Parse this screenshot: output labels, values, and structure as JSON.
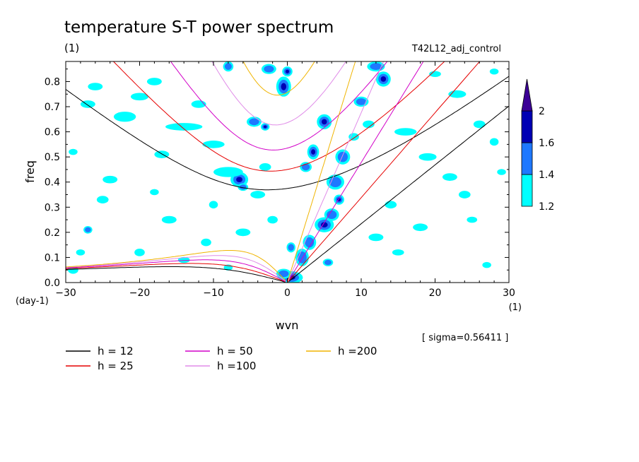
{
  "title": "temperature S-T power spectrum",
  "subtitle": "(1)",
  "run_label": "T42L12_adj_control",
  "sigma_text": "[ sigma=0.56411 ]",
  "chart_data": {
    "type": "heatmap",
    "title": "temperature S-T power spectrum",
    "subtitle": "(1)",
    "xlabel": "wvn",
    "xunit": "(1)",
    "ylabel": "freq",
    "yunit": "(day-1)",
    "xlim": [
      -30,
      30
    ],
    "ylim": [
      0,
      0.88
    ],
    "x_ticks": [
      -30,
      -20,
      -10,
      0,
      10,
      20,
      30
    ],
    "x_tick_labels": [
      "−30",
      "−20",
      "−10",
      "0",
      "10",
      "20",
      "30"
    ],
    "y_ticks": [
      0,
      0.1,
      0.2,
      0.3,
      0.4,
      0.5,
      0.6,
      0.7,
      0.8
    ],
    "y_tick_labels": [
      "0.0",
      "0.1",
      "0.2",
      "0.3",
      "0.4",
      "0.5",
      "0.6",
      "0.7",
      "0.8"
    ],
    "colorbar": {
      "levels": [
        1.2,
        1.4,
        1.6,
        2
      ],
      "labels": [
        "1.2",
        "1.4",
        "1.6",
        "2"
      ],
      "colors": [
        "#00ffff",
        "#1e78ff",
        "#0000b4",
        "#3c0096"
      ]
    },
    "blobs": [
      {
        "x": 0.5,
        "y": 0.02,
        "rx": 1.6,
        "ry": 0.025,
        "level": 3
      },
      {
        "x": -0.5,
        "y": 0.035,
        "rx": 1.0,
        "ry": 0.02,
        "level": 2
      },
      {
        "x": 2.0,
        "y": 0.1,
        "rx": 0.9,
        "ry": 0.035,
        "level": 2
      },
      {
        "x": 3.0,
        "y": 0.16,
        "rx": 0.9,
        "ry": 0.03,
        "level": 2
      },
      {
        "x": 5.0,
        "y": 0.23,
        "rx": 1.3,
        "ry": 0.03,
        "level": 3
      },
      {
        "x": 6.0,
        "y": 0.27,
        "rx": 1.0,
        "ry": 0.025,
        "level": 2
      },
      {
        "x": 6.5,
        "y": 0.4,
        "rx": 1.2,
        "ry": 0.03,
        "level": 2
      },
      {
        "x": 7.5,
        "y": 0.5,
        "rx": 1.0,
        "ry": 0.03,
        "level": 2
      },
      {
        "x": 5.0,
        "y": 0.64,
        "rx": 1.0,
        "ry": 0.03,
        "level": 3
      },
      {
        "x": 3.5,
        "y": 0.52,
        "rx": 0.8,
        "ry": 0.03,
        "level": 3
      },
      {
        "x": 2.5,
        "y": 0.46,
        "rx": 0.8,
        "ry": 0.02,
        "level": 2
      },
      {
        "x": 10.0,
        "y": 0.72,
        "rx": 1.0,
        "ry": 0.02,
        "level": 2
      },
      {
        "x": 13.0,
        "y": 0.81,
        "rx": 1.0,
        "ry": 0.03,
        "level": 3
      },
      {
        "x": 12.0,
        "y": 0.86,
        "rx": 1.2,
        "ry": 0.02,
        "level": 2
      },
      {
        "x": 11.0,
        "y": 0.63,
        "rx": 0.8,
        "ry": 0.015,
        "level": 1
      },
      {
        "x": -0.5,
        "y": 0.78,
        "rx": 1.0,
        "ry": 0.04,
        "level": 3
      },
      {
        "x": -2.5,
        "y": 0.85,
        "rx": 1.0,
        "ry": 0.02,
        "level": 2
      },
      {
        "x": 0.0,
        "y": 0.84,
        "rx": 0.7,
        "ry": 0.02,
        "level": 3
      },
      {
        "x": -8.0,
        "y": 0.86,
        "rx": 0.7,
        "ry": 0.02,
        "level": 2
      },
      {
        "x": -4.5,
        "y": 0.64,
        "rx": 1.0,
        "ry": 0.02,
        "level": 2
      },
      {
        "x": -3.0,
        "y": 0.62,
        "rx": 0.6,
        "ry": 0.015,
        "level": 3
      },
      {
        "x": -6.5,
        "y": 0.41,
        "rx": 1.2,
        "ry": 0.03,
        "level": 3
      },
      {
        "x": -6.0,
        "y": 0.38,
        "rx": 0.7,
        "ry": 0.015,
        "level": 2
      },
      {
        "x": 0.5,
        "y": 0.14,
        "rx": 0.6,
        "ry": 0.02,
        "level": 2
      },
      {
        "x": 5.5,
        "y": 0.08,
        "rx": 0.7,
        "ry": 0.015,
        "level": 2
      },
      {
        "x": 7.0,
        "y": 0.33,
        "rx": 0.7,
        "ry": 0.02,
        "level": 3
      },
      {
        "x": -29.0,
        "y": 0.05,
        "rx": 0.7,
        "ry": 0.015,
        "level": 1
      },
      {
        "x": -27.0,
        "y": 0.71,
        "rx": 1.0,
        "ry": 0.015,
        "level": 1
      },
      {
        "x": -26.0,
        "y": 0.78,
        "rx": 1.0,
        "ry": 0.015,
        "level": 1
      },
      {
        "x": -22.0,
        "y": 0.66,
        "rx": 1.5,
        "ry": 0.02,
        "level": 1
      },
      {
        "x": -20.0,
        "y": 0.74,
        "rx": 1.2,
        "ry": 0.015,
        "level": 1
      },
      {
        "x": -17.0,
        "y": 0.51,
        "rx": 1.0,
        "ry": 0.015,
        "level": 1
      },
      {
        "x": -24.0,
        "y": 0.41,
        "rx": 1.0,
        "ry": 0.015,
        "level": 1
      },
      {
        "x": -25.0,
        "y": 0.33,
        "rx": 0.8,
        "ry": 0.015,
        "level": 1
      },
      {
        "x": -14.0,
        "y": 0.62,
        "rx": 2.5,
        "ry": 0.015,
        "level": 1
      },
      {
        "x": -18.0,
        "y": 0.8,
        "rx": 1.0,
        "ry": 0.015,
        "level": 1
      },
      {
        "x": -10.0,
        "y": 0.55,
        "rx": 1.5,
        "ry": 0.015,
        "level": 1
      },
      {
        "x": -12.0,
        "y": 0.71,
        "rx": 1.0,
        "ry": 0.015,
        "level": 1
      },
      {
        "x": -8.0,
        "y": 0.44,
        "rx": 2.0,
        "ry": 0.02,
        "level": 1
      },
      {
        "x": -4.0,
        "y": 0.35,
        "rx": 1.0,
        "ry": 0.015,
        "level": 1
      },
      {
        "x": -3.0,
        "y": 0.46,
        "rx": 0.8,
        "ry": 0.015,
        "level": 1
      },
      {
        "x": -16.0,
        "y": 0.25,
        "rx": 1.0,
        "ry": 0.015,
        "level": 1
      },
      {
        "x": -10.0,
        "y": 0.31,
        "rx": 0.6,
        "ry": 0.015,
        "level": 1
      },
      {
        "x": -6.0,
        "y": 0.2,
        "rx": 1.0,
        "ry": 0.015,
        "level": 1
      },
      {
        "x": -11.0,
        "y": 0.16,
        "rx": 0.7,
        "ry": 0.015,
        "level": 1
      },
      {
        "x": -20.0,
        "y": 0.12,
        "rx": 0.7,
        "ry": 0.015,
        "level": 1
      },
      {
        "x": -27.0,
        "y": 0.21,
        "rx": 0.6,
        "ry": 0.015,
        "level": 2
      },
      {
        "x": -14.0,
        "y": 0.09,
        "rx": 0.8,
        "ry": 0.012,
        "level": 1
      },
      {
        "x": -2.0,
        "y": 0.25,
        "rx": 0.7,
        "ry": 0.015,
        "level": 1
      },
      {
        "x": 16.0,
        "y": 0.6,
        "rx": 1.5,
        "ry": 0.015,
        "level": 1
      },
      {
        "x": 19.0,
        "y": 0.5,
        "rx": 1.2,
        "ry": 0.015,
        "level": 1
      },
      {
        "x": 22.0,
        "y": 0.42,
        "rx": 1.0,
        "ry": 0.015,
        "level": 1
      },
      {
        "x": 24.0,
        "y": 0.35,
        "rx": 0.8,
        "ry": 0.015,
        "level": 1
      },
      {
        "x": 23.0,
        "y": 0.75,
        "rx": 1.2,
        "ry": 0.015,
        "level": 1
      },
      {
        "x": 26.0,
        "y": 0.63,
        "rx": 0.8,
        "ry": 0.015,
        "level": 1
      },
      {
        "x": 28.0,
        "y": 0.56,
        "rx": 0.6,
        "ry": 0.015,
        "level": 1
      },
      {
        "x": 29.0,
        "y": 0.44,
        "rx": 0.6,
        "ry": 0.012,
        "level": 1
      },
      {
        "x": 18.0,
        "y": 0.22,
        "rx": 1.0,
        "ry": 0.015,
        "level": 1
      },
      {
        "x": 25.0,
        "y": 0.25,
        "rx": 0.7,
        "ry": 0.012,
        "level": 1
      },
      {
        "x": 27.0,
        "y": 0.07,
        "rx": 0.6,
        "ry": 0.012,
        "level": 1
      },
      {
        "x": 12.0,
        "y": 0.18,
        "rx": 1.0,
        "ry": 0.015,
        "level": 1
      },
      {
        "x": 14.0,
        "y": 0.31,
        "rx": 0.8,
        "ry": 0.015,
        "level": 1
      },
      {
        "x": 15.0,
        "y": 0.12,
        "rx": 0.8,
        "ry": 0.012,
        "level": 1
      },
      {
        "x": 20.0,
        "y": 0.83,
        "rx": 0.8,
        "ry": 0.012,
        "level": 1
      },
      {
        "x": 28.0,
        "y": 0.84,
        "rx": 0.6,
        "ry": 0.012,
        "level": 1
      },
      {
        "x": 9.0,
        "y": 0.58,
        "rx": 0.7,
        "ry": 0.015,
        "level": 1
      },
      {
        "x": -29.0,
        "y": 0.52,
        "rx": 0.6,
        "ry": 0.012,
        "level": 1
      },
      {
        "x": -28.0,
        "y": 0.12,
        "rx": 0.6,
        "ry": 0.012,
        "level": 1
      },
      {
        "x": -8.0,
        "y": 0.06,
        "rx": 0.6,
        "ry": 0.012,
        "level": 1
      },
      {
        "x": -18.0,
        "y": 0.36,
        "rx": 0.6,
        "ry": 0.012,
        "level": 1
      }
    ],
    "dispersion_curves": [
      {
        "label": "h = 12",
        "h": 12,
        "color": "#000000"
      },
      {
        "label": "h = 25",
        "h": 25,
        "color": "#e60000"
      },
      {
        "label": "h = 50",
        "h": 50,
        "color": "#d200c8"
      },
      {
        "label": "h =100",
        "h": 100,
        "color": "#e08ce8"
      },
      {
        "label": "h =200",
        "h": 200,
        "color": "#f0b400"
      }
    ]
  }
}
